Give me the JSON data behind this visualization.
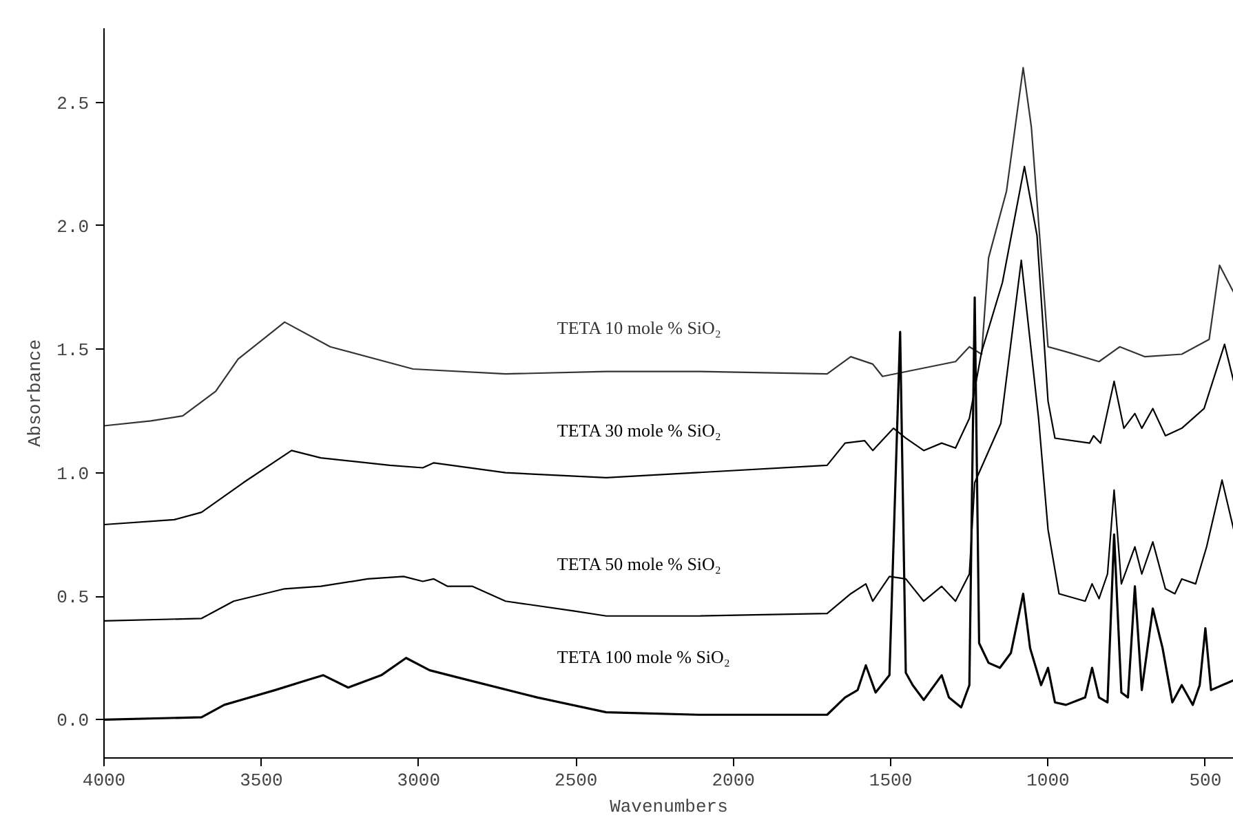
{
  "chart_data": {
    "type": "line",
    "xlabel": "Wavenumbers",
    "ylabel": "Absorbance",
    "xlim": [
      4000,
      410
    ],
    "ylim": [
      -0.155,
      2.8
    ],
    "xticks": [
      4000,
      3500,
      3000,
      2500,
      2000,
      1500,
      1000,
      500
    ],
    "yticks": [
      {
        "value": 0,
        "label": "0.0"
      },
      {
        "value": 0.5,
        "label": "0.5"
      },
      {
        "value": 1,
        "label": "1.0"
      },
      {
        "value": 1.5,
        "label": "1.5"
      },
      {
        "value": 2,
        "label": "2.0"
      },
      {
        "value": 2.5,
        "label": "2.5"
      }
    ],
    "grid": false,
    "legend": false,
    "marker": "none",
    "line_style": "solid",
    "series": [
      {
        "name": "TETA 10 mole % SiO₂",
        "color": "#333333",
        "x": [
          4000,
          3851,
          3750,
          3645,
          3574,
          3426,
          3281,
          3018,
          2724,
          2404,
          2110,
          1702,
          1627,
          1557,
          1526,
          1294,
          1250,
          1211,
          1189,
          1132,
          1079,
          1053,
          1000,
          943,
          838,
          772,
          693,
          575,
          488,
          455,
          410
        ],
        "values": [
          1.19,
          1.21,
          1.23,
          1.33,
          1.46,
          1.61,
          1.51,
          1.42,
          1.4,
          1.41,
          1.41,
          1.4,
          1.47,
          1.44,
          1.39,
          1.45,
          1.51,
          1.48,
          1.87,
          2.14,
          2.64,
          2.4,
          1.51,
          1.49,
          1.45,
          1.51,
          1.47,
          1.48,
          1.54,
          1.84,
          1.73
        ]
      },
      {
        "name": "TETA 30 mole % SiO₂",
        "color": "#000000",
        "x": [
          4000,
          3777,
          3690,
          3557,
          3404,
          3311,
          3092,
          2987,
          2952,
          2724,
          2404,
          1702,
          1645,
          1583,
          1557,
          1491,
          1452,
          1395,
          1338,
          1294,
          1250,
          1211,
          1145,
          1075,
          1035,
          1000,
          978,
          868,
          855,
          833,
          790,
          759,
          724,
          702,
          667,
          627,
          575,
          504,
          439,
          410
        ],
        "values": [
          0.79,
          0.81,
          0.84,
          0.96,
          1.09,
          1.06,
          1.03,
          1.02,
          1.04,
          1.0,
          0.98,
          1.03,
          1.12,
          1.13,
          1.09,
          1.18,
          1.14,
          1.09,
          1.12,
          1.1,
          1.22,
          1.49,
          1.77,
          2.24,
          1.96,
          1.29,
          1.14,
          1.12,
          1.15,
          1.12,
          1.37,
          1.18,
          1.24,
          1.18,
          1.26,
          1.15,
          1.18,
          1.26,
          1.52,
          1.37
        ]
      },
      {
        "name": "TETA 50 mole % SiO₂",
        "color": "#000000",
        "x": [
          4000,
          3690,
          3588,
          3426,
          3311,
          3162,
          3048,
          2987,
          2952,
          2908,
          2829,
          2724,
          2505,
          2404,
          2110,
          1702,
          1627,
          1579,
          1557,
          1504,
          1452,
          1395,
          1338,
          1294,
          1250,
          1233,
          1150,
          1085,
          1030,
          1000,
          965,
          882,
          860,
          838,
          811,
          790,
          767,
          724,
          702,
          667,
          627,
          597,
          575,
          531,
          496,
          447,
          410
        ],
        "values": [
          0.4,
          0.41,
          0.48,
          0.53,
          0.54,
          0.57,
          0.58,
          0.56,
          0.57,
          0.54,
          0.54,
          0.48,
          0.44,
          0.42,
          0.42,
          0.43,
          0.51,
          0.55,
          0.48,
          0.58,
          0.57,
          0.48,
          0.54,
          0.48,
          0.59,
          0.96,
          1.2,
          1.86,
          1.22,
          0.77,
          0.51,
          0.48,
          0.55,
          0.49,
          0.59,
          0.93,
          0.55,
          0.7,
          0.59,
          0.72,
          0.53,
          0.51,
          0.57,
          0.55,
          0.7,
          0.97,
          0.77
        ]
      },
      {
        "name": "TETA 100 mole % SiO₂",
        "color": "#000000",
        "x": [
          4000,
          3690,
          3618,
          3456,
          3355,
          3303,
          3224,
          3119,
          3040,
          2965,
          2873,
          2623,
          2404,
          2110,
          1702,
          1645,
          1605,
          1579,
          1548,
          1504,
          1470,
          1452,
          1430,
          1395,
          1338,
          1315,
          1276,
          1250,
          1233,
          1219,
          1189,
          1153,
          1118,
          1079,
          1057,
          1022,
          1000,
          978,
          943,
          882,
          860,
          838,
          811,
          790,
          767,
          746,
          724,
          702,
          667,
          636,
          605,
          575,
          540,
          518,
          500,
          482,
          410
        ],
        "values": [
          0.0,
          0.01,
          0.06,
          0.12,
          0.16,
          0.18,
          0.13,
          0.18,
          0.25,
          0.2,
          0.17,
          0.09,
          0.03,
          0.02,
          0.02,
          0.09,
          0.12,
          0.22,
          0.11,
          0.18,
          1.57,
          0.19,
          0.14,
          0.08,
          0.18,
          0.09,
          0.05,
          0.14,
          1.71,
          0.31,
          0.23,
          0.21,
          0.27,
          0.51,
          0.29,
          0.14,
          0.21,
          0.07,
          0.06,
          0.09,
          0.21,
          0.09,
          0.07,
          0.75,
          0.11,
          0.09,
          0.54,
          0.12,
          0.45,
          0.29,
          0.07,
          0.14,
          0.06,
          0.14,
          0.37,
          0.12,
          0.16
        ]
      }
    ]
  }
}
